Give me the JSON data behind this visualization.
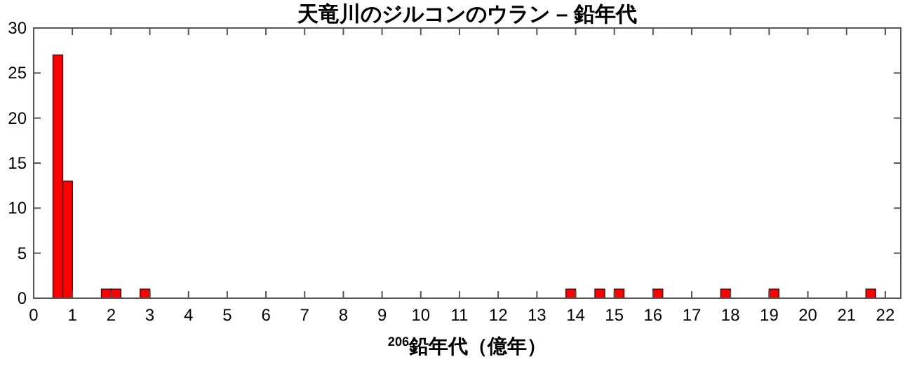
{
  "chart_data": {
    "type": "histogram",
    "title": "天竜川のジルコンのウラン – 鉛年代",
    "xlabel": "$^{206}$鉛年代（億年）",
    "bins": [
      0.5,
      0.75,
      1,
      1.25,
      1.5,
      1.75,
      2,
      2.25,
      2.5,
      2.75,
      3,
      3.25,
      3.5,
      3.75,
      4,
      4.25,
      4.5,
      4.75,
      5,
      5.25,
      5.5,
      5.75,
      6,
      6.25,
      6.5,
      6.75,
      7,
      7.25,
      7.5,
      7.75,
      8,
      8.25,
      8.5,
      8.75,
      9,
      9.25,
      9.5,
      9.75,
      10,
      10.25,
      10.5,
      10.75,
      11,
      11.25,
      11.5,
      11.75,
      12,
      12.25,
      12.5,
      12.75,
      13,
      13.25,
      13.5,
      13.75,
      14,
      14.25,
      14.5,
      14.75,
      15,
      15.25,
      15.5,
      15.75,
      16,
      16.25,
      16.5,
      16.75,
      17,
      17.25,
      17.5,
      17.75,
      18,
      18.25,
      18.5,
      18.75,
      19,
      19.25,
      19.5,
      19.75,
      20,
      20.25,
      20.5,
      20.75,
      21,
      21.25,
      21.5,
      21.75
    ],
    "values": [
      27,
      13,
      0,
      0,
      0,
      1,
      1,
      0,
      0,
      1,
      0,
      0,
      0,
      0,
      0,
      0,
      0,
      0,
      0,
      0,
      0,
      0,
      0,
      0,
      0,
      0,
      0,
      0,
      0,
      0,
      0,
      0,
      0,
      0,
      0,
      0,
      0,
      0,
      0,
      0,
      0,
      0,
      0,
      0,
      0,
      0,
      0,
      0,
      0,
      0,
      0,
      0,
      0,
      1,
      0,
      0,
      1,
      0,
      1,
      0,
      0,
      0,
      1,
      0,
      0,
      0,
      0,
      0,
      0,
      1,
      0,
      0,
      0,
      0,
      1,
      0,
      0,
      0,
      0,
      0,
      0,
      0,
      0,
      0,
      1
    ],
    "color": "#ff0000",
    "xlim": [
      0,
      22.4
    ],
    "xticks": [
      0,
      1,
      2,
      3,
      4,
      5,
      6,
      7,
      8,
      9,
      10,
      11,
      12,
      13,
      14,
      15,
      16,
      17,
      18,
      19,
      20,
      21,
      22
    ],
    "ylim": [
      0,
      30
    ],
    "yticks": [
      0,
      5,
      10,
      15,
      20,
      25,
      30
    ],
    "grid": false
  }
}
